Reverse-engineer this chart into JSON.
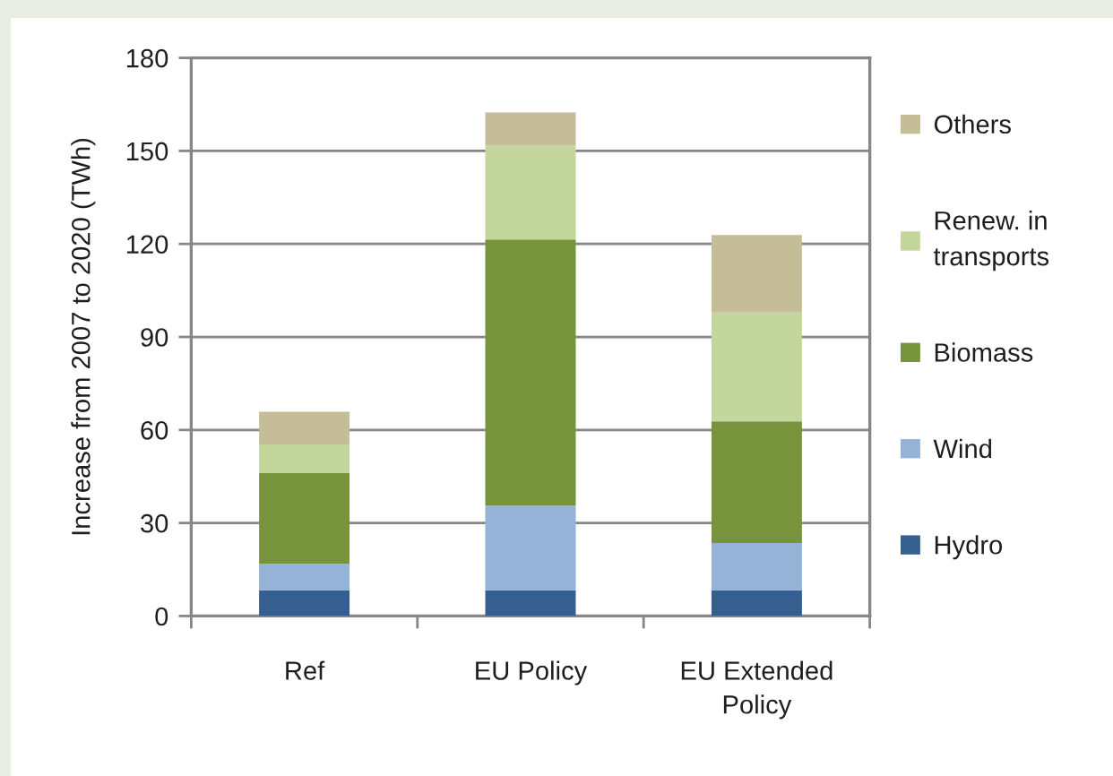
{
  "chart_data": {
    "type": "bar",
    "stacked": true,
    "ylabel": "Increase from 2007 to 2020 (TWh)",
    "categories": [
      "Ref",
      "EU Policy",
      "EU Extended\nPolicy"
    ],
    "series": [
      {
        "name": "Hydro",
        "color": "#355f91",
        "values": [
          8.3,
          8.3,
          8.3
        ]
      },
      {
        "name": "Wind",
        "color": "#95b3d7",
        "values": [
          8.5,
          27.3,
          15.2
        ]
      },
      {
        "name": "Biomass",
        "color": "#77933c",
        "values": [
          29.3,
          85.8,
          39.3
        ]
      },
      {
        "name": "Renew. in\ntransports",
        "color": "#c3d69b",
        "values": [
          9.2,
          30.4,
          35.1
        ]
      },
      {
        "name": "Others",
        "color": "#c4bd97",
        "values": [
          10.6,
          10.6,
          25.0
        ]
      }
    ],
    "ylim": [
      0,
      180
    ],
    "yticks": [
      0,
      30,
      60,
      90,
      120,
      150,
      180
    ],
    "grid": "y",
    "legend": "right"
  }
}
